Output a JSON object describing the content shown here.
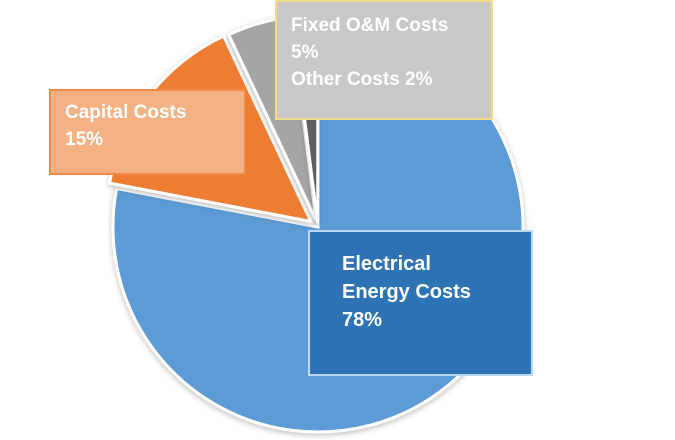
{
  "chart_data": {
    "type": "pie",
    "title": "",
    "slices": [
      {
        "name": "Electrical Energy Costs",
        "value": 78,
        "color": "#5b9bd5"
      },
      {
        "name": "Capital Costs",
        "value": 15,
        "color": "#ed7d31"
      },
      {
        "name": "Fixed O&M Costs",
        "value": 5,
        "color": "#a5a5a5"
      },
      {
        "name": "Other Costs",
        "value": 2,
        "color": "#5f5f5f"
      }
    ],
    "labels": {
      "capital": {
        "line1": "Capital Costs",
        "line2": "15%"
      },
      "fixed": {
        "line1": "Fixed O&M Costs",
        "line2": "5%",
        "line3": "Other Costs 2%"
      },
      "energy": {
        "line1": "Electrical",
        "line2": "Energy Costs",
        "line3": "78%"
      }
    },
    "legend": "none",
    "grid": false
  }
}
